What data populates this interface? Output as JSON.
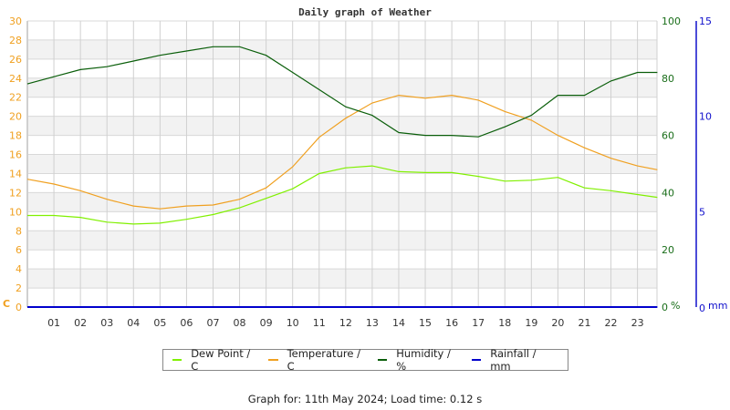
{
  "chart_data": {
    "type": "line",
    "title": "Daily graph of Weather",
    "xlabel": "",
    "x_ticks": [
      "01",
      "02",
      "03",
      "04",
      "05",
      "06",
      "07",
      "08",
      "09",
      "10",
      "11",
      "12",
      "13",
      "14",
      "15",
      "16",
      "17",
      "18",
      "19",
      "20",
      "21",
      "22",
      "23"
    ],
    "axes": {
      "left": {
        "unit": "C",
        "range": [
          0,
          30
        ],
        "ticks": [
          "0",
          "2",
          "4",
          "6",
          "8",
          "10",
          "12",
          "14",
          "16",
          "18",
          "20",
          "22",
          "24",
          "26",
          "28",
          "30"
        ],
        "color": "#f0a020"
      },
      "right_humidity": {
        "unit": "%",
        "range": [
          0,
          100
        ],
        "ticks": [
          "0",
          "20",
          "40",
          "60",
          "80",
          "100"
        ],
        "color": "#1a6e1a"
      },
      "right_rain": {
        "unit": "mm",
        "range": [
          0,
          15
        ],
        "ticks": [
          "0",
          "5",
          "10",
          "15"
        ],
        "color": "#1010cc"
      }
    },
    "grid": true,
    "legend_position": "bottom",
    "x_hours": [
      0,
      1,
      2,
      3,
      4,
      5,
      6,
      7,
      8,
      9,
      10,
      11,
      12,
      13,
      14,
      15,
      16,
      17,
      18,
      19,
      20,
      21,
      22,
      23,
      23.75
    ],
    "series": [
      {
        "name": "Dew Point / C",
        "color": "#80f000",
        "axis": "left",
        "values": [
          9.6,
          9.6,
          9.4,
          8.9,
          8.7,
          8.8,
          9.2,
          9.7,
          10.4,
          11.4,
          12.4,
          14.0,
          14.6,
          14.8,
          14.2,
          14.1,
          14.1,
          13.7,
          13.2,
          13.3,
          13.6,
          12.5,
          12.2,
          11.8,
          11.5
        ]
      },
      {
        "name": "Temperature / C",
        "color": "#f0a020",
        "axis": "left",
        "values": [
          13.4,
          12.9,
          12.2,
          11.3,
          10.6,
          10.3,
          10.6,
          10.7,
          11.3,
          12.5,
          14.7,
          17.8,
          19.8,
          21.4,
          22.2,
          21.9,
          22.2,
          21.7,
          20.5,
          19.6,
          18.0,
          16.7,
          15.6,
          14.8,
          14.4
        ]
      },
      {
        "name": "Humidity / %",
        "color": "#0a5e0a",
        "axis": "right_humidity",
        "values": [
          78,
          80.5,
          83,
          84,
          86,
          88,
          89.5,
          91,
          91,
          88,
          82,
          76,
          70,
          67,
          61,
          60,
          60,
          59.5,
          63,
          67,
          74,
          74,
          79,
          82,
          82
        ]
      },
      {
        "name": "Rainfall / mm",
        "color": "#0000cc",
        "axis": "right_rain",
        "values": [
          0,
          0,
          0,
          0,
          0,
          0,
          0,
          0,
          0,
          0,
          0,
          0,
          0,
          0,
          0,
          0,
          0,
          0,
          0,
          0,
          0,
          0,
          0,
          0,
          0
        ]
      }
    ]
  },
  "chart": {
    "title": "Daily graph of Weather",
    "left_unit": "C",
    "hum_unit": "%",
    "rain_unit": "mm"
  },
  "legend": {
    "items": [
      {
        "label": "Dew Point / C",
        "color": "#80f000"
      },
      {
        "label": "Temperature / C",
        "color": "#f0a020"
      },
      {
        "label": "Humidity / %",
        "color": "#0a5e0a"
      },
      {
        "label": "Rainfall / mm",
        "color": "#0000cc"
      }
    ]
  },
  "footer": {
    "text": "Graph for: 11th May 2024; Load time: 0.12 s"
  }
}
